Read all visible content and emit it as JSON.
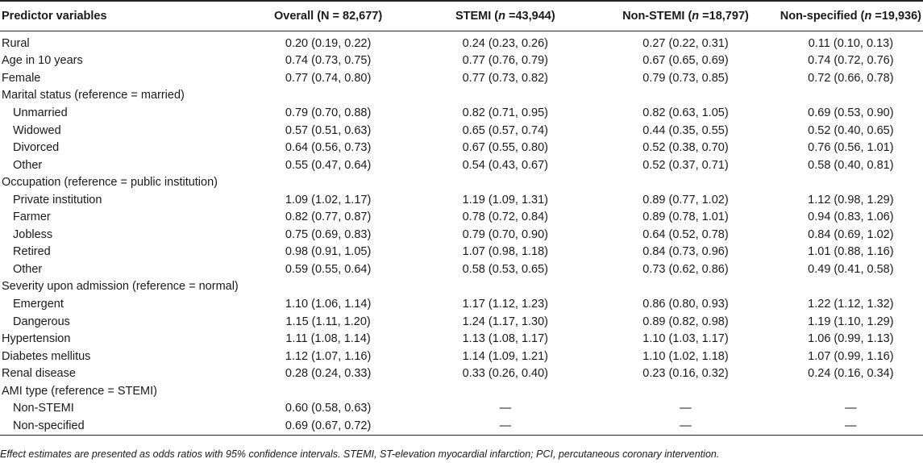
{
  "header": {
    "col0": "Predictor variables",
    "col1": "Overall (N = 82,677)",
    "col2_name": "STEMI (",
    "col2_n": "n",
    "col2_rest": " =43,944)",
    "col3_name": "Non-STEMI (",
    "col3_n": "n",
    "col3_rest": " =18,797)",
    "col4_name": "Non-specified (",
    "col4_n": "n",
    "col4_rest": " =19,936)"
  },
  "rows": [
    {
      "label": "Rural",
      "sub": false,
      "v": [
        "0.20 (0.19, 0.22)",
        "0.24 (0.23, 0.26)",
        "0.27 (0.22, 0.31)",
        "0.11 (0.10, 0.13)"
      ]
    },
    {
      "label": "Age in 10 years",
      "sub": false,
      "v": [
        "0.74 (0.73, 0.75)",
        "0.77 (0.76, 0.79)",
        "0.67 (0.65, 0.69)",
        "0.74 (0.72, 0.76)"
      ]
    },
    {
      "label": "Female",
      "sub": false,
      "v": [
        "0.77 (0.74, 0.80)",
        "0.77 (0.73, 0.82)",
        "0.79 (0.73, 0.85)",
        "0.72 (0.66, 0.78)"
      ]
    },
    {
      "label": "Marital status (reference = married)",
      "sub": false,
      "v": [
        "",
        "",
        "",
        ""
      ]
    },
    {
      "label": "Unmarried",
      "sub": true,
      "v": [
        "0.79 (0.70, 0.88)",
        "0.82 (0.71, 0.95)",
        "0.82 (0.63, 1.05)",
        "0.69 (0.53, 0.90)"
      ]
    },
    {
      "label": "Widowed",
      "sub": true,
      "v": [
        "0.57 (0.51, 0.63)",
        "0.65 (0.57, 0.74)",
        "0.44 (0.35, 0.55)",
        "0.52 (0.40, 0.65)"
      ]
    },
    {
      "label": "Divorced",
      "sub": true,
      "v": [
        "0.64 (0.56, 0.73)",
        "0.67 (0.55, 0.80)",
        "0.52 (0.38, 0.70)",
        "0.76 (0.56, 1.01)"
      ]
    },
    {
      "label": "Other",
      "sub": true,
      "v": [
        "0.55 (0.47, 0.64)",
        "0.54 (0.43, 0.67)",
        "0.52 (0.37, 0.71)",
        "0.58 (0.40, 0.81)"
      ]
    },
    {
      "label": "Occupation (reference = public institution)",
      "sub": false,
      "v": [
        "",
        "",
        "",
        ""
      ]
    },
    {
      "label": "Private institution",
      "sub": true,
      "v": [
        "1.09 (1.02, 1.17)",
        "1.19 (1.09, 1.31)",
        "0.89 (0.77, 1.02)",
        "1.12 (0.98, 1.29)"
      ]
    },
    {
      "label": "Farmer",
      "sub": true,
      "v": [
        "0.82 (0.77, 0.87)",
        "0.78 (0.72, 0.84)",
        "0.89 (0.78, 1.01)",
        "0.94 (0.83, 1.06)"
      ]
    },
    {
      "label": "Jobless",
      "sub": true,
      "v": [
        "0.75 (0.69, 0.83)",
        "0.79 (0.70, 0.90)",
        "0.64 (0.52, 0.78)",
        "0.84 (0.69, 1.02)"
      ]
    },
    {
      "label": "Retired",
      "sub": true,
      "v": [
        "0.98 (0.91, 1.05)",
        "1.07 (0.98, 1.18)",
        "0.84 (0.73, 0.96)",
        "1.01 (0.88, 1.16)"
      ]
    },
    {
      "label": "Other",
      "sub": true,
      "v": [
        "0.59 (0.55, 0.64)",
        "0.58 (0.53, 0.65)",
        "0.73 (0.62, 0.86)",
        "0.49 (0.41, 0.58)"
      ]
    },
    {
      "label": "Severity upon admission (reference = normal)",
      "sub": false,
      "v": [
        "",
        "",
        "",
        ""
      ]
    },
    {
      "label": "Emergent",
      "sub": true,
      "v": [
        "1.10 (1.06, 1.14)",
        "1.17 (1.12, 1.23)",
        "0.86 (0.80, 0.93)",
        "1.22 (1.12, 1.32)"
      ]
    },
    {
      "label": "Dangerous",
      "sub": true,
      "v": [
        "1.15 (1.11, 1.20)",
        "1.24 (1.17, 1.30)",
        "0.89 (0.82, 0.98)",
        "1.19 (1.10, 1.29)"
      ]
    },
    {
      "label": "Hypertension",
      "sub": false,
      "v": [
        "1.11 (1.08, 1.14)",
        "1.13 (1.08, 1.17)",
        "1.10 (1.03, 1.17)",
        "1.06 (0.99, 1.13)"
      ]
    },
    {
      "label": "Diabetes mellitus",
      "sub": false,
      "v": [
        "1.12 (1.07, 1.16)",
        "1.14 (1.09, 1.21)",
        "1.10 (1.02, 1.18)",
        "1.07 (0.99, 1.16)"
      ]
    },
    {
      "label": "Renal disease",
      "sub": false,
      "v": [
        "0.28 (0.24, 0.33)",
        "0.33 (0.26, 0.40)",
        "0.23 (0.16, 0.32)",
        "0.24 (0.16, 0.34)"
      ]
    },
    {
      "label": "AMI type (reference = STEMI)",
      "sub": false,
      "v": [
        "",
        "",
        "",
        ""
      ]
    },
    {
      "label": "Non-STEMI",
      "sub": true,
      "v": [
        "0.60 (0.58, 0.63)",
        "—",
        "—",
        "—"
      ]
    },
    {
      "label": "Non-specified",
      "sub": true,
      "v": [
        "0.69 (0.67, 0.72)",
        "—",
        "—",
        "—"
      ]
    }
  ],
  "footnote": "Effect estimates are presented as odds ratios with 95% confidence intervals. STEMI, ST-elevation myocardial infarction; PCI, percutaneous coronary intervention."
}
